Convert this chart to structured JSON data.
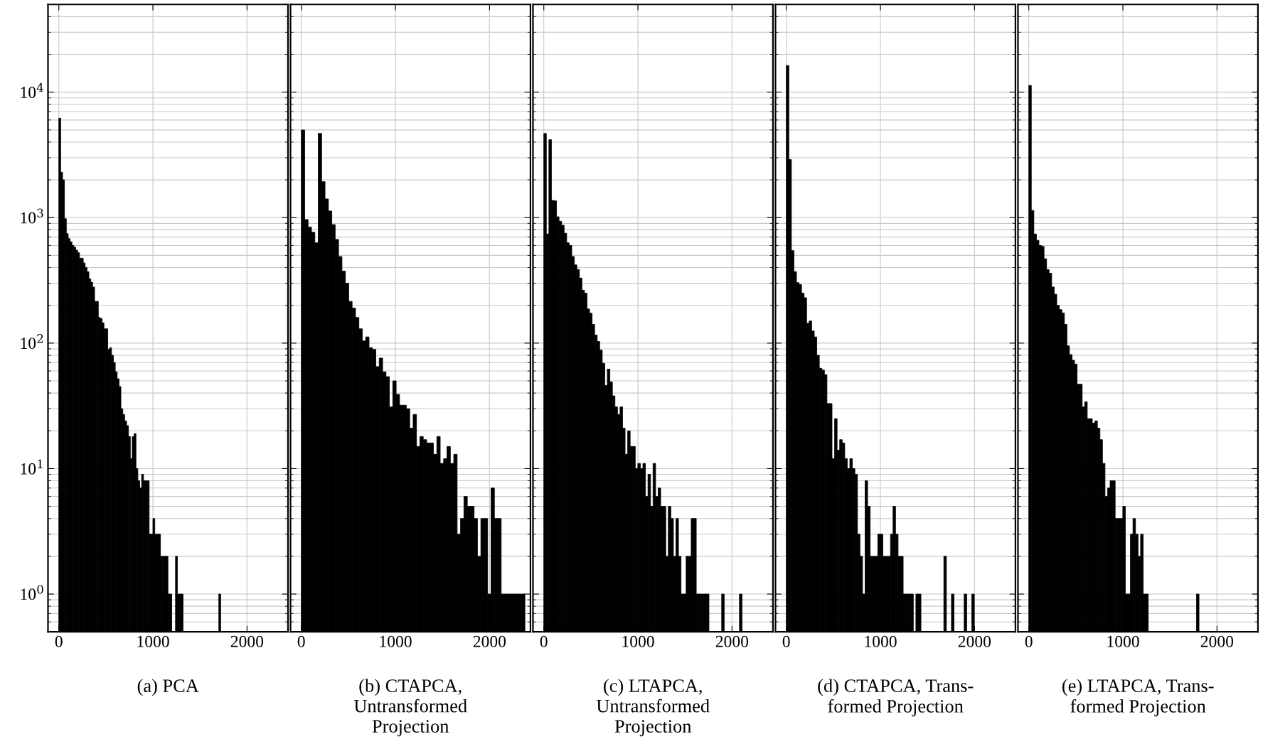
{
  "chart_data": [
    {
      "type": "histogram",
      "title": "(a) PCA",
      "xlim": [
        -115,
        2435
      ],
      "xticks": [
        0,
        1000,
        2000
      ],
      "ylim": [
        0.5,
        50000
      ],
      "log": true,
      "grid": true,
      "color": "#000000",
      "yticks": [
        {
          "value": 1,
          "label": "10$^{0}$"
        },
        {
          "value": 10,
          "label": "10$^{1}$"
        },
        {
          "value": 100,
          "label": "10$^{2}$"
        },
        {
          "value": 1000,
          "label": "10$^{3}$"
        },
        {
          "value": 10000,
          "label": "10$^{4}$"
        }
      ],
      "bins": [
        0,
        20,
        40,
        60,
        80,
        100,
        120,
        140,
        160,
        180,
        200,
        220,
        240,
        260,
        280,
        300,
        320,
        340,
        360,
        380,
        400,
        420,
        440,
        460,
        480,
        500,
        520,
        540,
        560,
        580,
        600,
        620,
        640,
        660,
        680,
        700,
        720,
        740,
        760,
        780,
        800,
        820,
        840,
        860,
        880,
        900,
        920,
        940,
        960,
        980,
        1000,
        1020,
        1040,
        1060,
        1080,
        1100,
        1120,
        1140,
        1160,
        1180,
        1200,
        1220,
        1240,
        1260,
        1280,
        1300,
        1320,
        1340,
        1360,
        1380,
        1400,
        1420,
        1440,
        1460,
        1480,
        1500,
        1520,
        1540,
        1560,
        1580,
        1600,
        1620,
        1640,
        1660,
        1680,
        1700,
        1720
      ],
      "values": [
        6200,
        2300,
        2000,
        980,
        745,
        680,
        640,
        600,
        580,
        550,
        525,
        475,
        475,
        435,
        400,
        370,
        325,
        305,
        280,
        215,
        215,
        160,
        157,
        145,
        130,
        130,
        89,
        92,
        80,
        70,
        59,
        52,
        45,
        30,
        27,
        24,
        22,
        18,
        12,
        18,
        19,
        10,
        8,
        7,
        9,
        8,
        8,
        8,
        3,
        3,
        4,
        3,
        3,
        3,
        2,
        2,
        2,
        2,
        1,
        1,
        null,
        null,
        2,
        1,
        1,
        1,
        null,
        null,
        null,
        null,
        null,
        null,
        null,
        null,
        null,
        null,
        null,
        null,
        null,
        null,
        null,
        null,
        null,
        null,
        null,
        1
      ]
    },
    {
      "type": "histogram",
      "title": "(b) CTAPCA,\nUntransformed\nProjection",
      "xlim": [
        -115,
        2435
      ],
      "xticks": [
        0,
        1000,
        2000
      ],
      "ylim": [
        0.5,
        50000
      ],
      "log": true,
      "grid": true,
      "color": "#000000",
      "tick_labels": "x",
      "yticks": [
        {
          "value": 1,
          "label": null
        },
        {
          "value": 10,
          "label": null
        },
        {
          "value": 100,
          "label": null
        },
        {
          "value": 1000,
          "label": null
        },
        {
          "value": 10000,
          "label": null
        }
      ],
      "bins": [
        0,
        36,
        72,
        108,
        144,
        180,
        216,
        252,
        288,
        324,
        360,
        396,
        432,
        468,
        504,
        540,
        576,
        612,
        648,
        684,
        720,
        756,
        792,
        828,
        864,
        900,
        936,
        972,
        1008,
        1044,
        1080,
        1116,
        1152,
        1188,
        1224,
        1260,
        1296,
        1332,
        1368,
        1404,
        1440,
        1476,
        1512,
        1548,
        1584,
        1620,
        1656,
        1692,
        1728,
        1764,
        1800,
        1836,
        1872,
        1908,
        1944,
        1980,
        2016,
        2052,
        2088,
        2124,
        2160,
        2196,
        2232,
        2268,
        2304,
        2340,
        2376
      ],
      "values": [
        4990,
        966,
        840,
        765,
        630,
        4690,
        1935,
        1410,
        1130,
        880,
        670,
        490,
        375,
        300,
        215,
        190,
        160,
        130,
        104,
        112,
        92,
        89,
        65,
        76,
        59,
        54,
        31,
        50,
        39,
        32,
        32,
        30,
        21,
        27,
        15,
        18,
        17,
        16,
        16,
        13,
        18,
        11,
        12,
        15,
        11,
        13,
        3,
        4,
        6,
        5,
        5,
        4,
        2,
        4,
        4,
        1,
        7,
        4,
        4,
        1,
        1,
        1,
        1,
        1,
        1,
        1
      ]
    },
    {
      "type": "histogram",
      "title": "(c) LTAPCA,\nUntransformed\nProjection",
      "xlim": [
        -115,
        2435
      ],
      "xticks": [
        0,
        1000,
        2000
      ],
      "ylim": [
        0.5,
        50000
      ],
      "log": true,
      "grid": true,
      "color": "#000000",
      "tick_labels": "x",
      "yticks": [
        {
          "value": 1,
          "label": null
        },
        {
          "value": 10,
          "label": null
        },
        {
          "value": 100,
          "label": null
        },
        {
          "value": 1000,
          "label": null
        },
        {
          "value": 10000,
          "label": null
        }
      ],
      "bins": [
        0,
        27,
        54,
        81,
        108,
        135,
        162,
        189,
        216,
        243,
        270,
        297,
        324,
        351,
        378,
        405,
        432,
        459,
        486,
        513,
        540,
        567,
        594,
        621,
        648,
        675,
        702,
        729,
        756,
        783,
        810,
        837,
        864,
        891,
        918,
        945,
        972,
        999,
        1026,
        1053,
        1080,
        1107,
        1134,
        1161,
        1188,
        1215,
        1242,
        1269,
        1296,
        1323,
        1350,
        1377,
        1404,
        1431,
        1458,
        1485,
        1512,
        1539,
        1566,
        1593,
        1620,
        1647,
        1674,
        1701,
        1728,
        1755,
        1782,
        1809,
        1836,
        1863,
        1890,
        1917,
        1944,
        1971,
        1998,
        2025,
        2052,
        2079,
        2106
      ],
      "values": [
        4690,
        740,
        4180,
        1370,
        1360,
        1015,
        935,
        870,
        750,
        630,
        600,
        490,
        420,
        386,
        330,
        264,
        250,
        187,
        173,
        141,
        116,
        103,
        88,
        69,
        46,
        62,
        49,
        38,
        31,
        27,
        31,
        21,
        13,
        20,
        15,
        15,
        10,
        11,
        10,
        11,
        6,
        9,
        5,
        11,
        6,
        7,
        5,
        5,
        2,
        5,
        4,
        2,
        4,
        2,
        1,
        1,
        2,
        2,
        4,
        4,
        1,
        1,
        1,
        1,
        1,
        null,
        null,
        null,
        null,
        null,
        1,
        null,
        null,
        null,
        null,
        null,
        null,
        1
      ]
    },
    {
      "type": "histogram",
      "title": "(d) CTAPCA, Trans-\nformed Projection",
      "xlim": [
        -115,
        2435
      ],
      "xticks": [
        0,
        1000,
        2000
      ],
      "ylim": [
        0.5,
        50000
      ],
      "log": true,
      "grid": true,
      "color": "#000000",
      "tick_labels": "x",
      "yticks": [
        {
          "value": 1,
          "label": null
        },
        {
          "value": 10,
          "label": null
        },
        {
          "value": 100,
          "label": null
        },
        {
          "value": 1000,
          "label": null
        },
        {
          "value": 10000,
          "label": null
        }
      ],
      "bins": [
        0,
        27,
        54,
        81,
        108,
        135,
        162,
        189,
        216,
        243,
        270,
        297,
        324,
        351,
        378,
        405,
        432,
        459,
        486,
        513,
        540,
        567,
        594,
        621,
        648,
        675,
        702,
        729,
        756,
        783,
        810,
        837,
        864,
        891,
        918,
        945,
        972,
        999,
        1026,
        1053,
        1080,
        1107,
        1134,
        1161,
        1188,
        1215,
        1242,
        1269,
        1296,
        1323,
        1350,
        1377,
        1404,
        1431,
        1458,
        1485,
        1512,
        1539,
        1566,
        1593,
        1620,
        1647,
        1674,
        1701,
        1728,
        1755,
        1782,
        1809,
        1836,
        1863,
        1890,
        1917,
        1944,
        1971,
        1998
      ],
      "values": [
        16300,
        2900,
        546,
        371,
        303,
        293,
        250,
        230,
        144,
        150,
        125,
        112,
        80,
        63,
        61,
        56,
        33,
        33,
        12,
        25,
        14,
        17,
        16,
        12,
        10,
        12,
        10,
        9,
        3,
        2,
        1,
        8,
        5,
        2,
        2,
        2,
        3,
        3,
        2,
        2,
        2,
        3,
        5,
        3,
        2,
        2,
        1,
        1,
        1,
        1,
        null,
        1,
        1,
        null,
        null,
        null,
        null,
        null,
        null,
        null,
        null,
        null,
        2,
        null,
        null,
        1,
        null,
        null,
        null,
        null,
        1,
        null,
        null,
        1
      ]
    },
    {
      "type": "histogram",
      "title": "(e) LTAPCA, Trans-\nformed Projection",
      "xlim": [
        -115,
        2435
      ],
      "xticks": [
        0,
        1000,
        2000
      ],
      "ylim": [
        0.5,
        50000
      ],
      "log": true,
      "grid": true,
      "color": "#000000",
      "tick_labels": "x",
      "yticks": [
        {
          "value": 1,
          "label": null
        },
        {
          "value": 10,
          "label": null
        },
        {
          "value": 100,
          "label": null
        },
        {
          "value": 1000,
          "label": null
        },
        {
          "value": 10000,
          "label": null
        }
      ],
      "bins": [
        0,
        27,
        54,
        81,
        108,
        135,
        162,
        189,
        216,
        243,
        270,
        297,
        324,
        351,
        378,
        405,
        432,
        459,
        486,
        513,
        540,
        567,
        594,
        621,
        648,
        675,
        702,
        729,
        756,
        783,
        810,
        837,
        864,
        891,
        918,
        945,
        972,
        999,
        1026,
        1053,
        1080,
        1107,
        1134,
        1161,
        1188,
        1215,
        1242,
        1269,
        1296,
        1323,
        1350,
        1377,
        1404,
        1431,
        1458,
        1485,
        1512,
        1539,
        1566,
        1593,
        1620,
        1647,
        1674,
        1701,
        1728,
        1755,
        1782,
        1809
      ],
      "values": [
        11300,
        1140,
        740,
        660,
        600,
        590,
        470,
        385,
        360,
        280,
        245,
        200,
        185,
        174,
        141,
        95,
        81,
        73,
        68,
        47,
        47,
        31,
        34,
        25,
        25,
        23,
        24,
        21,
        17,
        11,
        6,
        7,
        8,
        8,
        4,
        4,
        4,
        5,
        1,
        1,
        3,
        4,
        3,
        2,
        3,
        1,
        1,
        null,
        null,
        null,
        null,
        null,
        null,
        null,
        null,
        null,
        null,
        null,
        null,
        null,
        null,
        null,
        null,
        null,
        null,
        null,
        1
      ]
    }
  ]
}
